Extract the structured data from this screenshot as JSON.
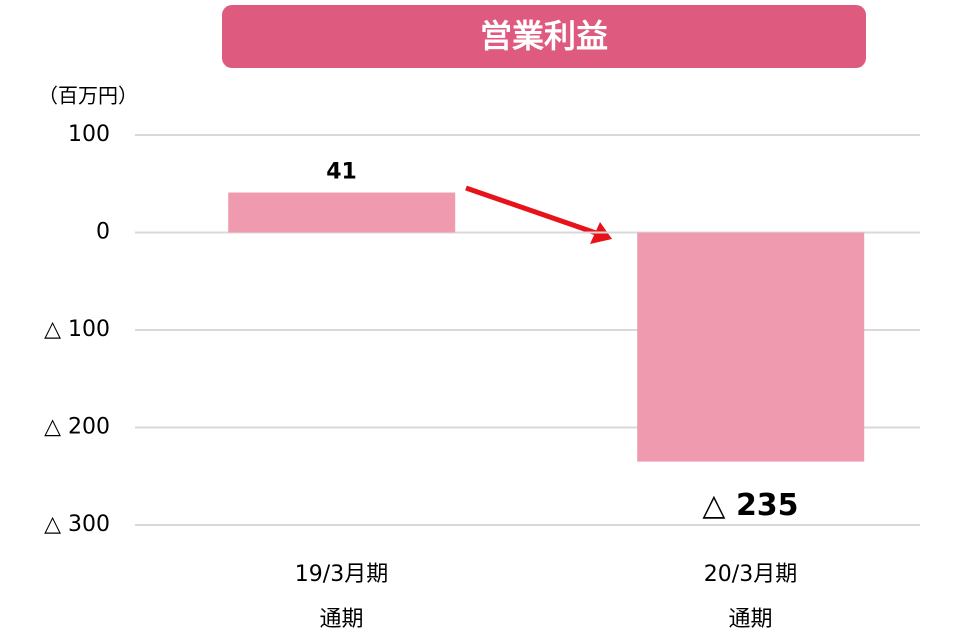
{
  "chart_data": {
    "type": "bar",
    "title": "営業利益",
    "y_unit": "（百万円）",
    "categories": [
      [
        "19/3月期",
        "通期"
      ],
      [
        "20/3月期",
        "通期"
      ]
    ],
    "values": [
      41,
      -235
    ],
    "value_labels": [
      "41",
      "△ 235"
    ],
    "color": "#f09ab0",
    "title_color": "#de5a7e",
    "ylim": [
      -300,
      100
    ],
    "yticks": [
      {
        "value": -300,
        "label": "△ 300"
      },
      {
        "value": -200,
        "label": "△ 200"
      },
      {
        "value": -100,
        "label": "△ 100"
      },
      0,
      100
    ],
    "grid": true
  }
}
